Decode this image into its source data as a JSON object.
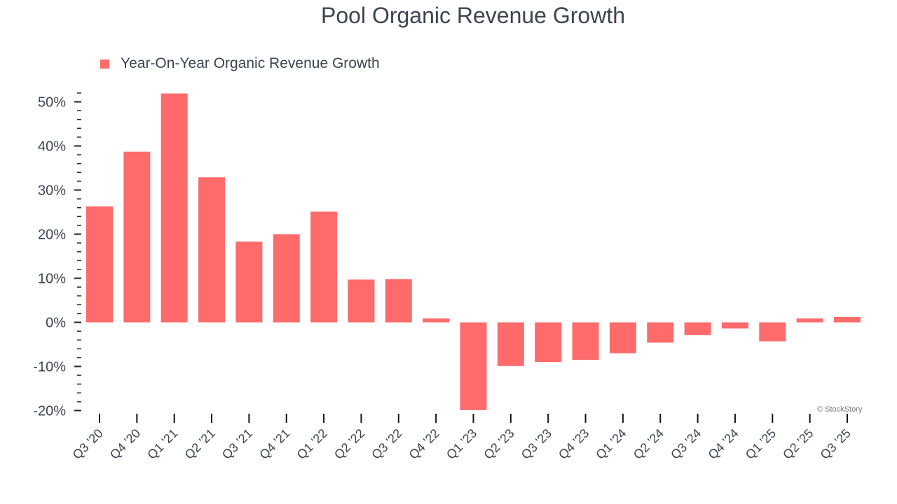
{
  "chart_data": {
    "type": "bar",
    "title": "Pool Organic Revenue Growth",
    "xlabel": "",
    "ylabel": "",
    "ylim": [
      -20,
      52
    ],
    "yticks": [
      -20,
      -10,
      0,
      10,
      20,
      30,
      40,
      50
    ],
    "ytick_format": "%",
    "grid": false,
    "legend_position": "top-left",
    "bar_color": "#ff6b6b",
    "categories": [
      "Q3 '20",
      "Q4 '20",
      "Q1 '21",
      "Q2 '21",
      "Q3 '21",
      "Q4 '21",
      "Q1 '22",
      "Q2 '22",
      "Q3 '22",
      "Q4 '22",
      "Q1 '23",
      "Q2 '23",
      "Q3 '23",
      "Q4 '23",
      "Q1 '24",
      "Q2 '24",
      "Q3 '24",
      "Q4 '24",
      "Q1 '25",
      "Q2 '25",
      "Q3 '25"
    ],
    "series": [
      {
        "name": "Year-On-Year Organic Revenue Growth",
        "values": [
          26.3,
          38.7,
          51.9,
          32.9,
          18.3,
          20.0,
          25.1,
          9.7,
          9.8,
          0.9,
          -19.9,
          -9.9,
          -9.0,
          -8.5,
          -7.0,
          -4.6,
          -2.9,
          -1.4,
          -4.3,
          0.9,
          1.2
        ]
      }
    ]
  },
  "credit": "© StockStory"
}
